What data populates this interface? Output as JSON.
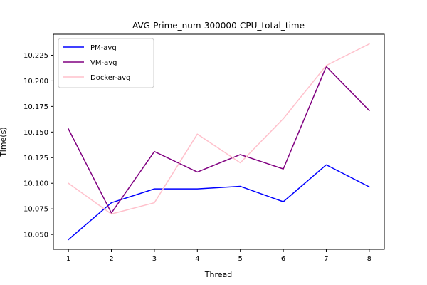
{
  "chart_data": {
    "type": "line",
    "title": "AVG-Prime_num-300000-CPU_total_time",
    "xlabel": "Thread",
    "ylabel": "Time(s)",
    "x": [
      1,
      2,
      3,
      4,
      5,
      6,
      7,
      8
    ],
    "xticks": [
      "1",
      "2",
      "3",
      "4",
      "5",
      "6",
      "7",
      "8"
    ],
    "yticks": [
      10.05,
      10.075,
      10.1,
      10.125,
      10.15,
      10.175,
      10.2,
      10.225
    ],
    "ytick_labels": [
      "10.050",
      "10.075",
      "10.100",
      "10.125",
      "10.150",
      "10.175",
      "10.200",
      "10.225"
    ],
    "xlim": [
      0.65,
      8.35
    ],
    "ylim": [
      10.0355,
      10.2455
    ],
    "grid": false,
    "legend_position": "top-left",
    "series": [
      {
        "name": "PM-avg",
        "color": "#0000ff",
        "values": [
          10.045,
          10.081,
          10.0945,
          10.0945,
          10.097,
          10.082,
          10.118,
          10.0965
        ]
      },
      {
        "name": "VM-avg",
        "color": "#800080",
        "values": [
          10.153,
          10.071,
          10.131,
          10.111,
          10.128,
          10.114,
          10.214,
          10.171
        ]
      },
      {
        "name": "Docker-avg",
        "color": "#ffc0cb",
        "values": [
          10.1,
          10.07,
          10.081,
          10.148,
          10.12,
          10.163,
          10.215,
          10.236
        ]
      }
    ]
  }
}
